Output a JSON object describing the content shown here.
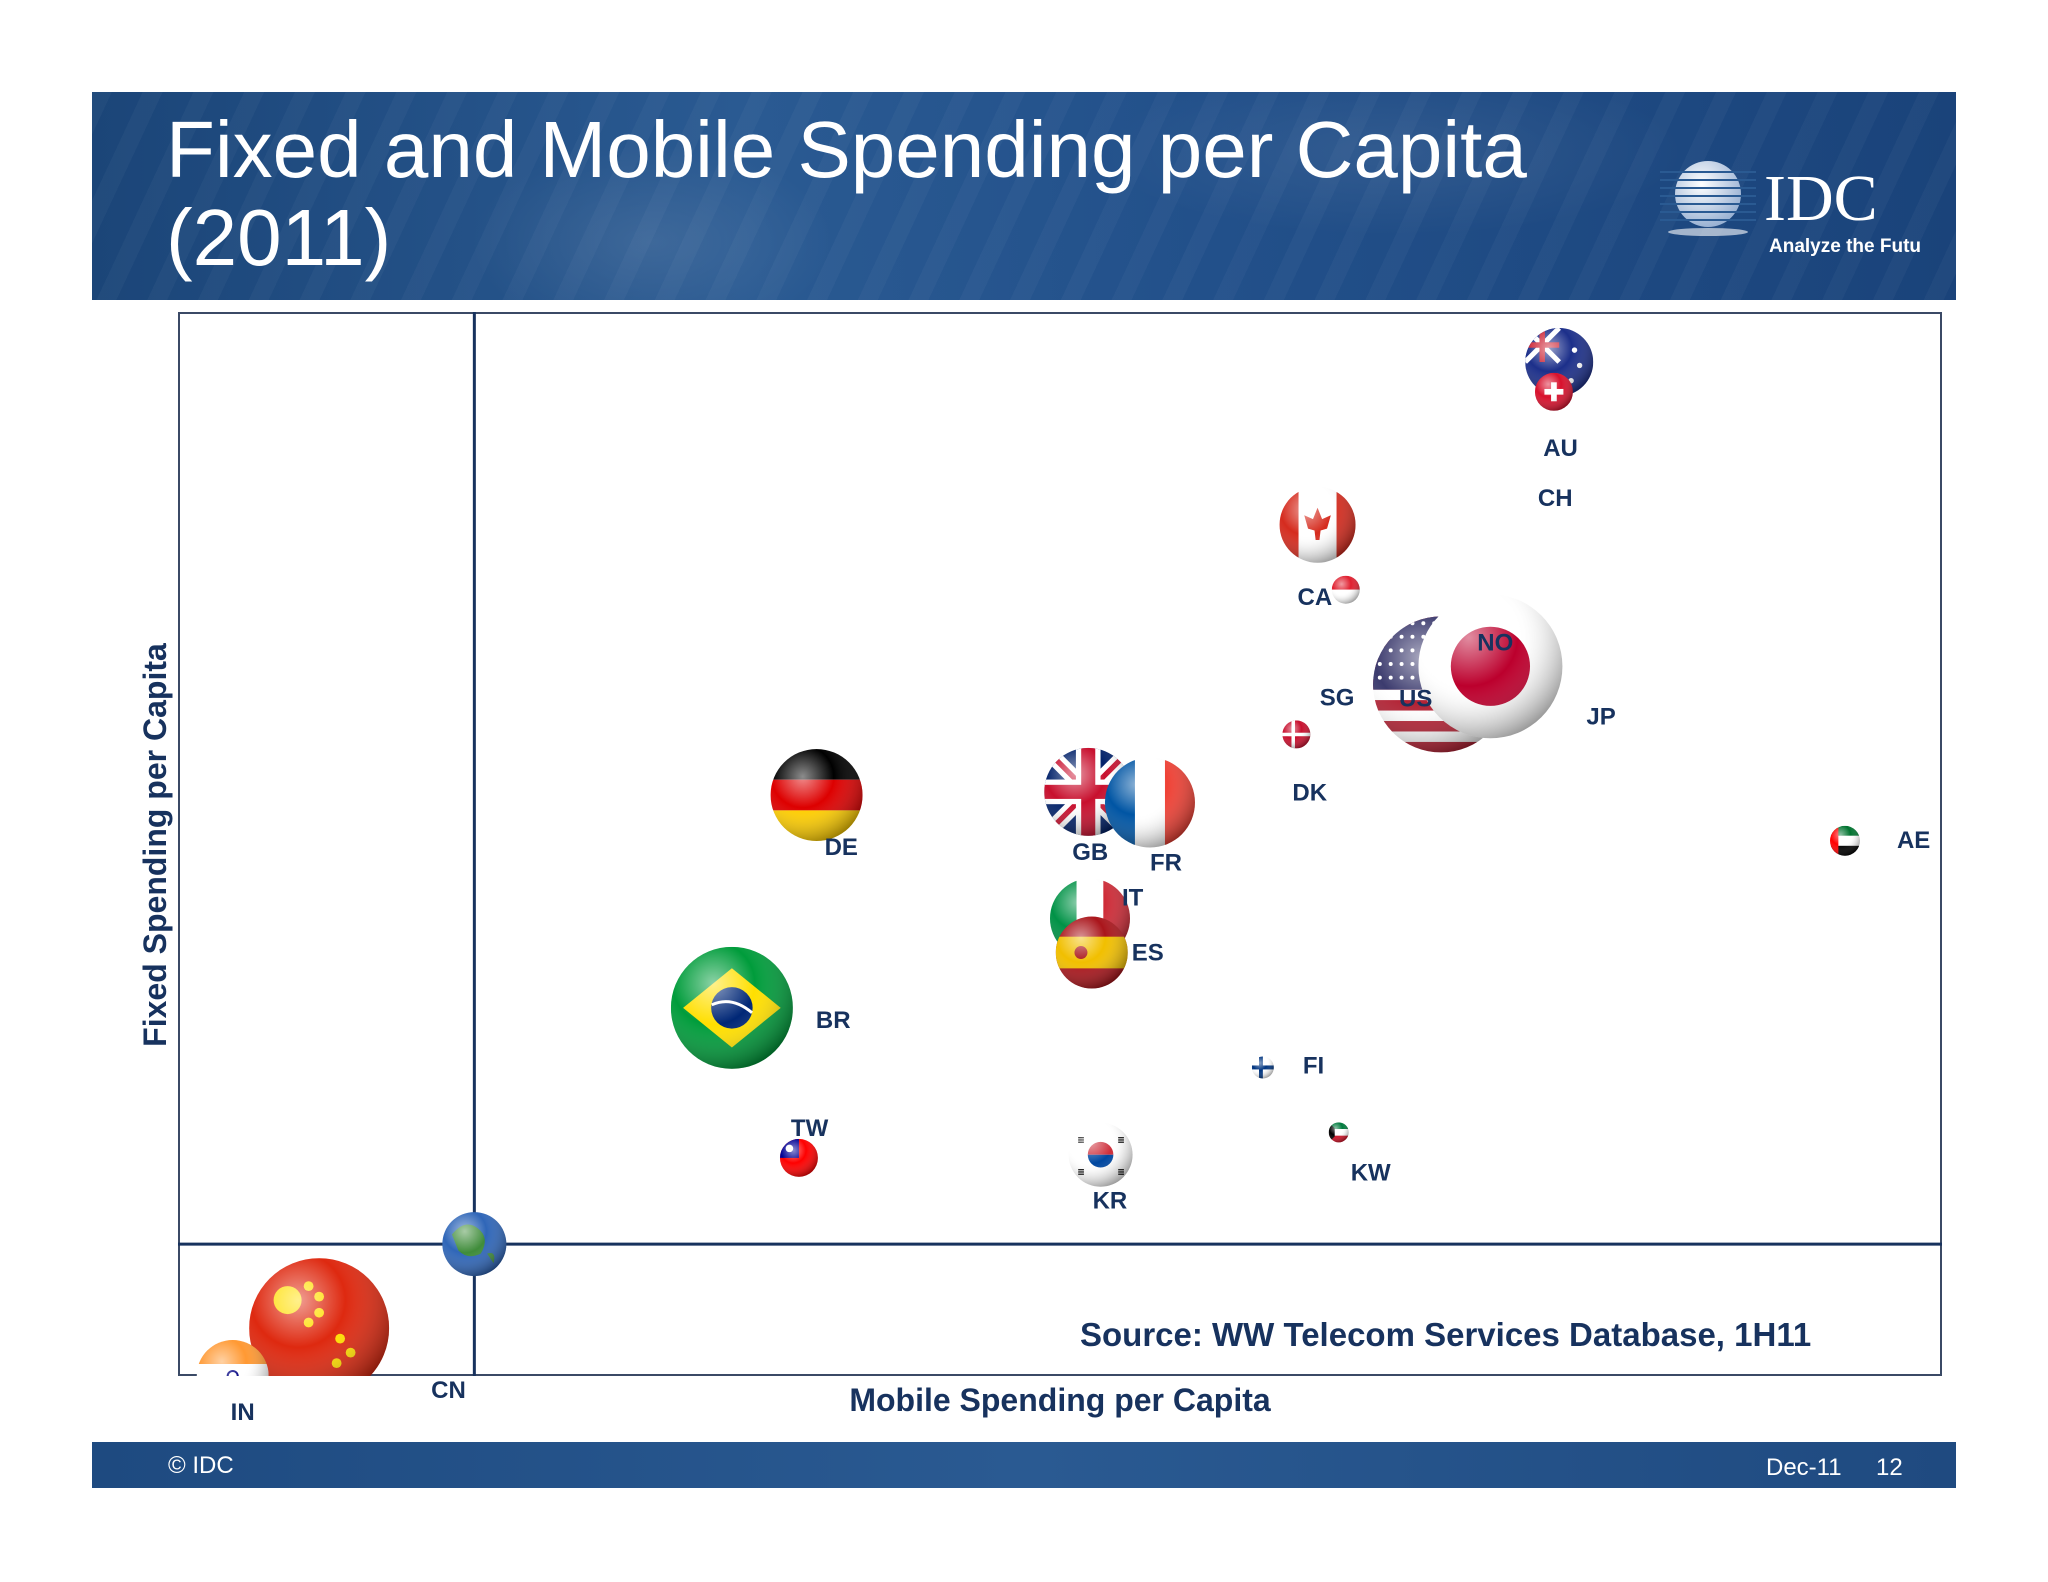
{
  "title": "Fixed and Mobile Spending per Capita (2011)",
  "logo": {
    "brand": "IDC",
    "tagline": "Analyze the Future"
  },
  "source": "Source: WW Telecom Services Database, 1H11",
  "footer": {
    "copyright": "© IDC",
    "date": "Dec-11",
    "page": "12"
  },
  "colors": {
    "banner": "#22508a",
    "axis": "#17325e",
    "label": "#17325e"
  },
  "chart_data": {
    "type": "scatter",
    "xlabel": "Mobile Spending per Capita",
    "ylabel": "Fixed Spending per Capita",
    "xlim": [
      0,
      100
    ],
    "ylim": [
      0,
      100
    ],
    "grid": false,
    "reference_lines": {
      "x": 16.8,
      "y": 12.4
    },
    "reference_marker": {
      "name": "globe-icon",
      "colors": [
        "#2f66b8",
        "#3f8c3a"
      ]
    },
    "points": [
      {
        "label": "AU",
        "x": 78.3,
        "y": 95.3,
        "colors": [
          "#1c2f8a",
          "#cc2233",
          "#ffffff"
        ]
      },
      {
        "label": "CH",
        "x": 78.0,
        "y": 92.5,
        "colors": [
          "#d8102c",
          "#ffffff"
        ]
      },
      {
        "label": "CA",
        "x": 64.6,
        "y": 80.0,
        "colors": [
          "#d52b1e",
          "#ffffff"
        ]
      },
      {
        "label": "SG",
        "x": 66.2,
        "y": 73.9,
        "colors": [
          "#e02030",
          "#ffffff"
        ]
      },
      {
        "label": "NO",
        "x": 74.9,
        "y": 67.9,
        "colors": [
          "#ba0c2f",
          "#00205b",
          "#ffffff"
        ]
      },
      {
        "label": "US",
        "x": 71.6,
        "y": 65.0,
        "colors": [
          "#b22234",
          "#ffffff",
          "#3c3b6e"
        ]
      },
      {
        "label": "JP",
        "x": 74.4,
        "y": 66.7,
        "colors": [
          "#ffffff",
          "#bc002d"
        ]
      },
      {
        "label": "DK",
        "x": 63.4,
        "y": 60.3,
        "colors": [
          "#c8102e",
          "#ffffff"
        ]
      },
      {
        "label": "AE",
        "x": 94.5,
        "y": 50.3,
        "colors": [
          "#00732f",
          "#ffffff",
          "#000000",
          "#ff0000"
        ]
      },
      {
        "label": "GB",
        "x": 51.6,
        "y": 54.9,
        "colors": [
          "#012169",
          "#ffffff",
          "#c8102e"
        ]
      },
      {
        "label": "FR",
        "x": 55.1,
        "y": 53.9,
        "colors": [
          "#0055a4",
          "#ffffff",
          "#ef4135"
        ]
      },
      {
        "label": "DE",
        "x": 36.2,
        "y": 54.6,
        "colors": [
          "#000000",
          "#dd0000",
          "#ffce00"
        ]
      },
      {
        "label": "IT",
        "x": 51.7,
        "y": 43.0,
        "colors": [
          "#009246",
          "#ffffff",
          "#ce2b37"
        ]
      },
      {
        "label": "ES",
        "x": 51.8,
        "y": 39.8,
        "colors": [
          "#aa151b",
          "#f1bf00"
        ]
      },
      {
        "label": "BR",
        "x": 31.4,
        "y": 34.6,
        "colors": [
          "#009c3b",
          "#ffdf00",
          "#002776"
        ]
      },
      {
        "label": "FI",
        "x": 61.5,
        "y": 29.0,
        "colors": [
          "#ffffff",
          "#003580"
        ]
      },
      {
        "label": "KW",
        "x": 65.8,
        "y": 22.9,
        "colors": [
          "#007a3d",
          "#ffffff",
          "#ce1126",
          "#000000"
        ]
      },
      {
        "label": "TW",
        "x": 35.2,
        "y": 20.5,
        "colors": [
          "#fe0000",
          "#000095",
          "#ffffff"
        ]
      },
      {
        "label": "KR",
        "x": 52.3,
        "y": 20.8,
        "colors": [
          "#ffffff",
          "#cd2e3a",
          "#0047a0",
          "#000000"
        ]
      },
      {
        "label": "CN",
        "x": 8.0,
        "y": 4.5,
        "colors": [
          "#de2910",
          "#ffde00"
        ]
      },
      {
        "label": "IN",
        "x": 3.1,
        "y": 0.0,
        "colors": [
          "#ff9933",
          "#ffffff",
          "#138808",
          "#000080"
        ]
      }
    ]
  }
}
